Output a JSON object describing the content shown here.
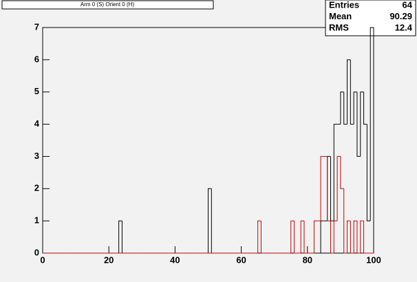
{
  "chart_data": {
    "type": "histogram",
    "title": "Arm 0 (S) Orient 0 (H)",
    "bins": [
      0,
      1,
      2,
      3,
      4,
      5,
      6,
      7,
      8,
      9,
      10,
      11,
      12,
      13,
      14,
      15,
      16,
      17,
      18,
      19,
      20,
      21,
      22,
      23,
      24,
      25,
      26,
      27,
      28,
      29,
      30,
      31,
      32,
      33,
      34,
      35,
      36,
      37,
      38,
      39,
      40,
      41,
      42,
      43,
      44,
      45,
      46,
      47,
      48,
      49,
      50,
      51,
      52,
      53,
      54,
      55,
      56,
      57,
      58,
      59,
      60,
      61,
      62,
      63,
      64,
      65,
      66,
      67,
      68,
      69,
      70,
      71,
      72,
      73,
      74,
      75,
      76,
      77,
      78,
      79,
      80,
      81,
      82,
      83,
      84,
      85,
      86,
      87,
      88,
      89,
      90,
      91,
      92,
      93,
      94,
      95,
      96,
      97,
      98,
      99,
      100
    ],
    "series": [
      {
        "color": "#000000",
        "values": [
          0,
          0,
          0,
          0,
          0,
          0,
          0,
          0,
          0,
          0,
          0,
          0,
          0,
          0,
          0,
          0,
          0,
          0,
          0,
          0,
          0,
          0,
          0,
          1,
          0,
          0,
          0,
          0,
          0,
          0,
          0,
          0,
          0,
          0,
          0,
          0,
          0,
          0,
          0,
          0,
          0,
          0,
          0,
          0,
          0,
          0,
          0,
          0,
          0,
          0,
          2,
          0,
          0,
          0,
          0,
          0,
          0,
          0,
          0,
          0,
          0,
          0,
          0,
          0,
          0,
          0,
          0,
          0,
          0,
          0,
          0,
          0,
          0,
          0,
          0,
          0,
          0,
          0,
          0,
          0,
          0,
          0,
          0,
          0,
          1,
          1,
          3,
          1,
          4,
          4,
          5,
          4,
          6,
          4,
          5,
          3,
          5,
          4,
          1,
          7
        ]
      },
      {
        "color": "#cc0000",
        "values": [
          0,
          0,
          0,
          0,
          0,
          0,
          0,
          0,
          0,
          0,
          0,
          0,
          0,
          0,
          0,
          0,
          0,
          0,
          0,
          0,
          0,
          0,
          0,
          0,
          0,
          0,
          0,
          0,
          0,
          0,
          0,
          0,
          0,
          0,
          0,
          0,
          0,
          0,
          0,
          0,
          0,
          0,
          0,
          0,
          0,
          0,
          0,
          0,
          0,
          0,
          0,
          0,
          0,
          0,
          0,
          0,
          0,
          0,
          0,
          0,
          0,
          0,
          0,
          0,
          0,
          1,
          0,
          0,
          0,
          0,
          0,
          0,
          0,
          0,
          0,
          1,
          0,
          0,
          1,
          0,
          0,
          0,
          1,
          1,
          3,
          3,
          1,
          0,
          1,
          3,
          2,
          0,
          1,
          0,
          1,
          0,
          1,
          0,
          0,
          0
        ]
      }
    ],
    "xlim": [
      0,
      100
    ],
    "xticks": [
      0,
      20,
      40,
      60,
      80,
      100
    ],
    "ylim": [
      0,
      7
    ],
    "yticks": [
      0,
      1,
      2,
      3,
      4,
      5,
      6,
      7
    ],
    "stats": [
      {
        "label": "Entries",
        "value": 64
      },
      {
        "label": "Mean",
        "value": 90.29
      },
      {
        "label": "RMS",
        "value": 12.4
      }
    ]
  }
}
